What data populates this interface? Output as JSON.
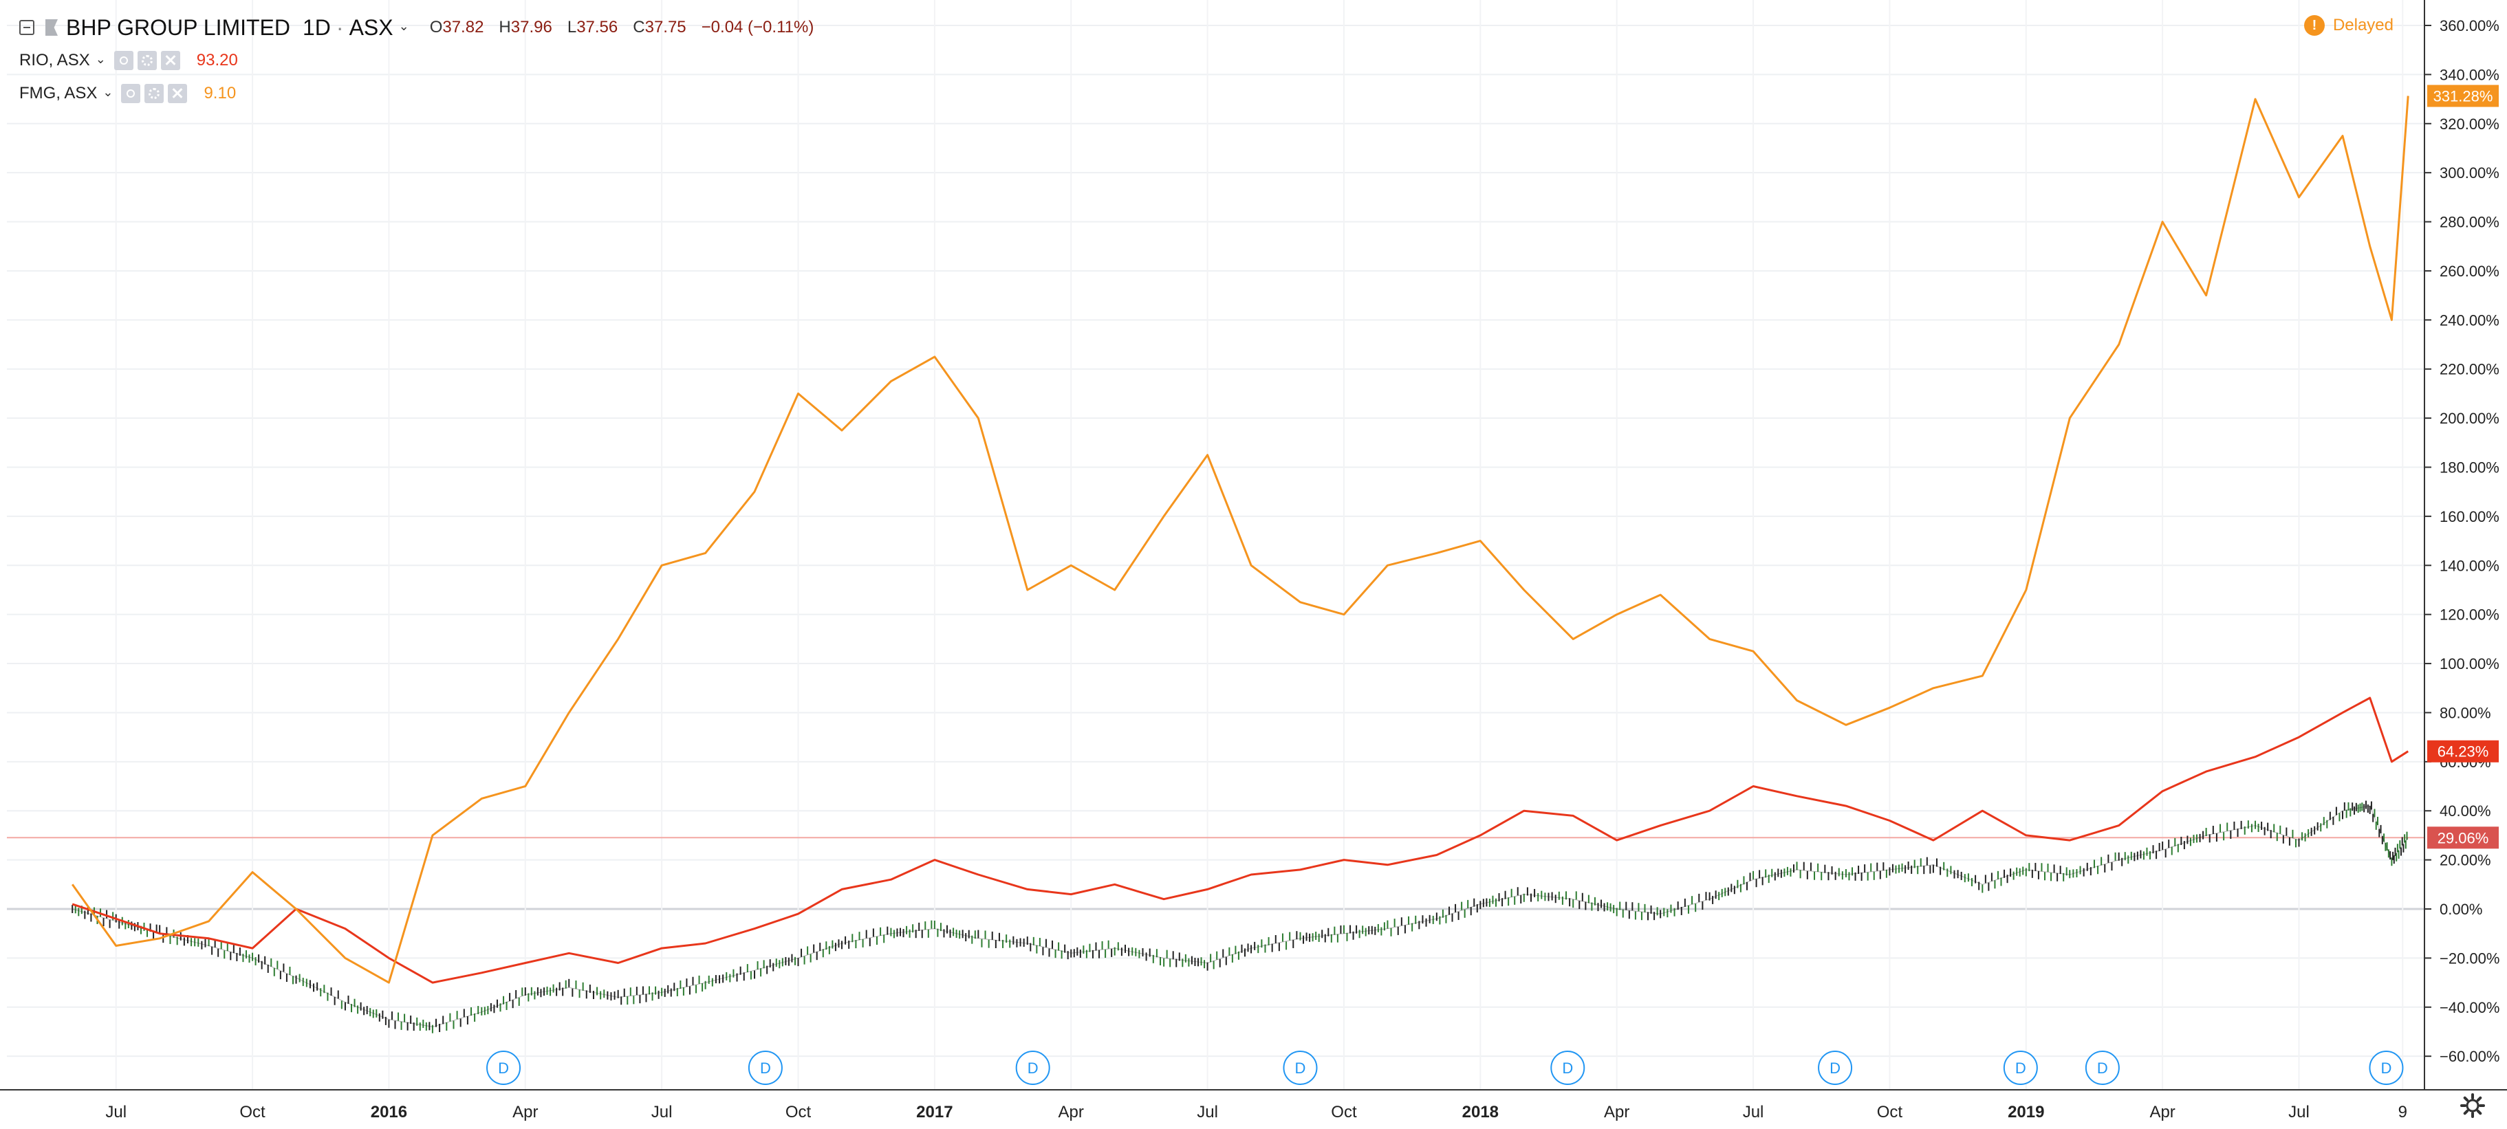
{
  "header": {
    "symbol": "BHP GROUP LIMITED",
    "interval": "1D",
    "exchange": "ASX",
    "open_label": "O",
    "open": "37.82",
    "high_label": "H",
    "high": "37.96",
    "low_label": "L",
    "low": "37.56",
    "close_label": "C",
    "close": "37.75",
    "change": "−0.04 (−0.11%)"
  },
  "comparisons": [
    {
      "symbol": "RIO, ASX",
      "value": "93.20",
      "color": "#e8361b"
    },
    {
      "symbol": "FMG, ASX",
      "value": "9.10",
      "color": "#f5941e"
    }
  ],
  "status": {
    "delayed_label": "Delayed",
    "delayed_icon": "!"
  },
  "icons": {
    "collapse": "collapse-icon",
    "flag": "flag-icon",
    "visibility": "eye-icon",
    "settings": "gear-icon",
    "remove": "close-icon"
  },
  "chart_data": {
    "type": "line",
    "y_unit": "%",
    "y_ticks": [
      "360.00%",
      "340.00%",
      "320.00%",
      "300.00%",
      "280.00%",
      "260.00%",
      "240.00%",
      "220.00%",
      "200.00%",
      "180.00%",
      "160.00%",
      "140.00%",
      "120.00%",
      "100.00%",
      "80.00%",
      "60.00%",
      "40.00%",
      "20.00%",
      "0.00%",
      "−20.00%",
      "−40.00%",
      "−60.00%"
    ],
    "ylim": [
      -70,
      365
    ],
    "x_ticks": [
      "Jul",
      "Oct",
      "2016",
      "Apr",
      "Jul",
      "Oct",
      "2017",
      "Apr",
      "Jul",
      "Oct",
      "2018",
      "Apr",
      "Jul",
      "Oct",
      "2019",
      "Apr",
      "Jul",
      "9"
    ],
    "series": [
      {
        "name": "BHP",
        "color": "#1f1f1f",
        "candles": true,
        "x": [
          2015.42,
          2015.5,
          2015.58,
          2015.67,
          2015.75,
          2015.83,
          2015.92,
          2016.0,
          2016.08,
          2016.17,
          2016.25,
          2016.33,
          2016.42,
          2016.5,
          2016.58,
          2016.67,
          2016.75,
          2016.83,
          2016.92,
          2017.0,
          2017.08,
          2017.17,
          2017.25,
          2017.33,
          2017.42,
          2017.5,
          2017.58,
          2017.67,
          2017.75,
          2017.83,
          2017.92,
          2018.0,
          2018.08,
          2018.17,
          2018.25,
          2018.33,
          2018.42,
          2018.5,
          2018.58,
          2018.67,
          2018.75,
          2018.83,
          2018.92,
          2019.0,
          2019.08,
          2019.17,
          2019.25,
          2019.33,
          2019.42,
          2019.5,
          2019.58,
          2019.63,
          2019.67,
          2019.7
        ],
        "y": [
          0,
          -5,
          -10,
          -15,
          -20,
          -28,
          -38,
          -45,
          -48,
          -42,
          -35,
          -32,
          -36,
          -34,
          -30,
          -25,
          -20,
          -14,
          -10,
          -8,
          -12,
          -14,
          -18,
          -16,
          -20,
          -22,
          -16,
          -12,
          -10,
          -8,
          -4,
          2,
          6,
          4,
          0,
          -2,
          4,
          12,
          16,
          14,
          16,
          18,
          10,
          16,
          14,
          20,
          24,
          30,
          34,
          28,
          40,
          42,
          20,
          29.06
        ]
      },
      {
        "name": "RIO, ASX",
        "color": "#e8361b",
        "x": [
          2015.42,
          2015.5,
          2015.58,
          2015.67,
          2015.75,
          2015.83,
          2015.92,
          2016.0,
          2016.08,
          2016.17,
          2016.25,
          2016.33,
          2016.42,
          2016.5,
          2016.58,
          2016.67,
          2016.75,
          2016.83,
          2016.92,
          2017.0,
          2017.08,
          2017.17,
          2017.25,
          2017.33,
          2017.42,
          2017.5,
          2017.58,
          2017.67,
          2017.75,
          2017.83,
          2017.92,
          2018.0,
          2018.08,
          2018.17,
          2018.25,
          2018.33,
          2018.42,
          2018.5,
          2018.58,
          2018.67,
          2018.75,
          2018.83,
          2018.92,
          2019.0,
          2019.08,
          2019.17,
          2019.25,
          2019.33,
          2019.42,
          2019.5,
          2019.58,
          2019.63,
          2019.67,
          2019.7
        ],
        "y": [
          2,
          -4,
          -10,
          -12,
          -16,
          0,
          -8,
          -20,
          -30,
          -26,
          -22,
          -18,
          -22,
          -16,
          -14,
          -8,
          -2,
          8,
          12,
          20,
          14,
          8,
          6,
          10,
          4,
          8,
          14,
          16,
          20,
          18,
          22,
          30,
          40,
          38,
          28,
          34,
          40,
          50,
          46,
          42,
          36,
          28,
          40,
          30,
          28,
          34,
          48,
          56,
          62,
          70,
          80,
          86,
          60,
          64.23
        ]
      },
      {
        "name": "FMG, ASX",
        "color": "#f5941e",
        "x": [
          2015.42,
          2015.5,
          2015.58,
          2015.67,
          2015.75,
          2015.83,
          2015.92,
          2016.0,
          2016.08,
          2016.17,
          2016.25,
          2016.33,
          2016.42,
          2016.5,
          2016.58,
          2016.67,
          2016.75,
          2016.83,
          2016.92,
          2017.0,
          2017.08,
          2017.17,
          2017.25,
          2017.33,
          2017.42,
          2017.5,
          2017.58,
          2017.67,
          2017.75,
          2017.83,
          2017.92,
          2018.0,
          2018.08,
          2018.17,
          2018.25,
          2018.33,
          2018.42,
          2018.5,
          2018.58,
          2018.67,
          2018.75,
          2018.83,
          2018.92,
          2019.0,
          2019.08,
          2019.17,
          2019.25,
          2019.33,
          2019.42,
          2019.5,
          2019.58,
          2019.63,
          2019.67,
          2019.7
        ],
        "y": [
          10,
          -15,
          -12,
          -5,
          15,
          0,
          -20,
          -30,
          30,
          45,
          50,
          80,
          110,
          140,
          145,
          170,
          210,
          195,
          215,
          225,
          200,
          130,
          140,
          130,
          160,
          185,
          140,
          125,
          120,
          140,
          145,
          150,
          130,
          110,
          120,
          128,
          110,
          105,
          85,
          75,
          82,
          90,
          95,
          130,
          200,
          230,
          280,
          250,
          330,
          290,
          315,
          270,
          240,
          331.28
        ]
      }
    ],
    "last_values": [
      {
        "label": "331.28%",
        "color": "#f5941e"
      },
      {
        "label": "64.23%",
        "color": "#e8361b"
      },
      {
        "label": "29.06%",
        "color": "#d9534f"
      }
    ],
    "dividend_marker_label": "D",
    "dividend_markers": [
      2016.21,
      2016.69,
      2017.18,
      2017.67,
      2018.16,
      2018.65,
      2018.99,
      2019.14,
      2019.66
    ],
    "grid": true,
    "zero_line": true
  }
}
